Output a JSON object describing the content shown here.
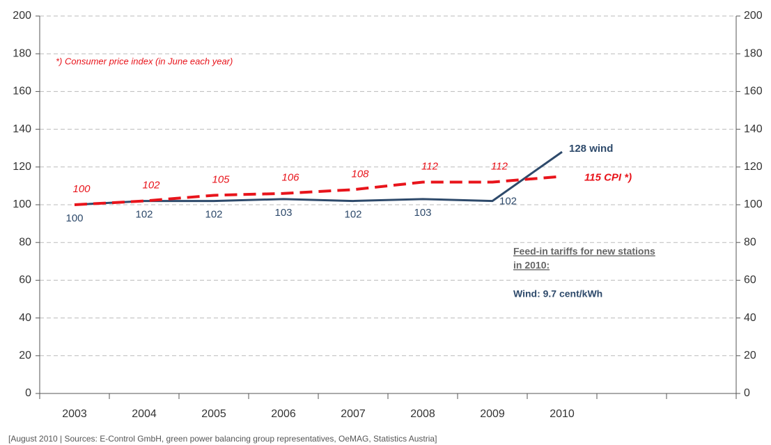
{
  "chart_data": {
    "type": "line",
    "categories": [
      "2003",
      "2004",
      "2005",
      "2006",
      "2007",
      "2008",
      "2009",
      "2010",
      null,
      null
    ],
    "series": [
      {
        "color": "#2e4a6b",
        "values": [
          100,
          102,
          102,
          103,
          102,
          103,
          102,
          128,
          null,
          null
        ],
        "value_labels": [
          "100",
          "102",
          "102",
          "103",
          "102",
          "103",
          "102",
          "128 wind",
          null,
          null
        ]
      },
      {
        "color": "#e8141b",
        "dashed": true,
        "values": [
          100,
          102,
          105,
          106,
          108,
          112,
          112,
          115,
          null,
          null
        ],
        "value_labels": [
          "100",
          "102",
          "105",
          "106",
          "108",
          "112",
          "112",
          "115  CPI *)",
          null,
          null
        ]
      }
    ],
    "ylim": [
      0,
      200
    ],
    "yticks": [
      0,
      20,
      40,
      60,
      80,
      100,
      120,
      140,
      160,
      180,
      200
    ],
    "y2lim": [
      0,
      200
    ],
    "y2ticks": [
      0,
      20,
      40,
      60,
      80,
      100,
      120,
      140,
      160,
      180,
      200
    ],
    "grid": true,
    "note": "*) Consumer price index (in June each year)",
    "box_title": [
      "Feed-in tariffs for new stations",
      "in 2010:"
    ],
    "box_text": "Wind: 9.7 cent/kWh",
    "source": "[August 2010 | Sources: E-Control GmbH, green power balancing group representatives, OeMAG, Statistics Austria]"
  }
}
